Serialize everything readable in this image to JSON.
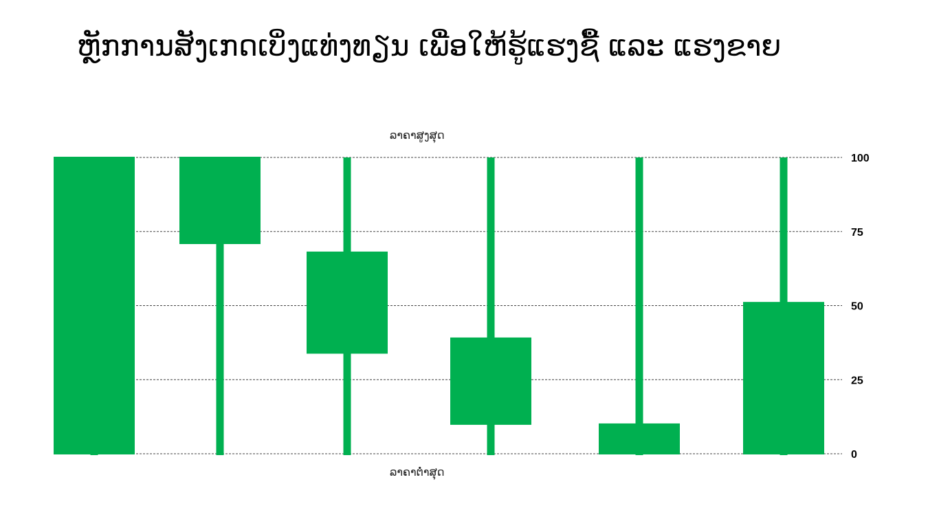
{
  "title": "ຫຼັກການສັງເກດເບິ່ງແທ່ງທຽນ ເພື່ອໃຫ້ຮູ້ແຮງຊື້ ແລະ ແຮງຂາຍ",
  "colors": {
    "candle": "#00b050",
    "grid": "#444444",
    "text": "#000000"
  },
  "chart_data": {
    "type": "candlestick",
    "annotations": {
      "high_label": "ລາຄາສູງສຸດ",
      "low_label": "ລາຄາຕ່ຳສຸດ"
    },
    "yticks": [
      "0",
      "25",
      "50",
      "75",
      "100"
    ],
    "ytick_values": [
      0,
      25,
      50,
      75,
      100
    ],
    "ylim": [
      0,
      100
    ],
    "grid": true,
    "candles": [
      {
        "high": 100,
        "body_top": 100,
        "body_bottom": 0,
        "low": 0
      },
      {
        "high": 100,
        "body_top": 100,
        "body_bottom": 71,
        "low": 0
      },
      {
        "high": 100,
        "body_top": 68,
        "body_bottom": 34,
        "low": 0
      },
      {
        "high": 100,
        "body_top": 39,
        "body_bottom": 10,
        "low": 0
      },
      {
        "high": 100,
        "body_top": 10,
        "body_bottom": 0,
        "low": 0
      },
      {
        "high": 100,
        "body_top": 51,
        "body_bottom": 0,
        "low": 0
      }
    ]
  }
}
